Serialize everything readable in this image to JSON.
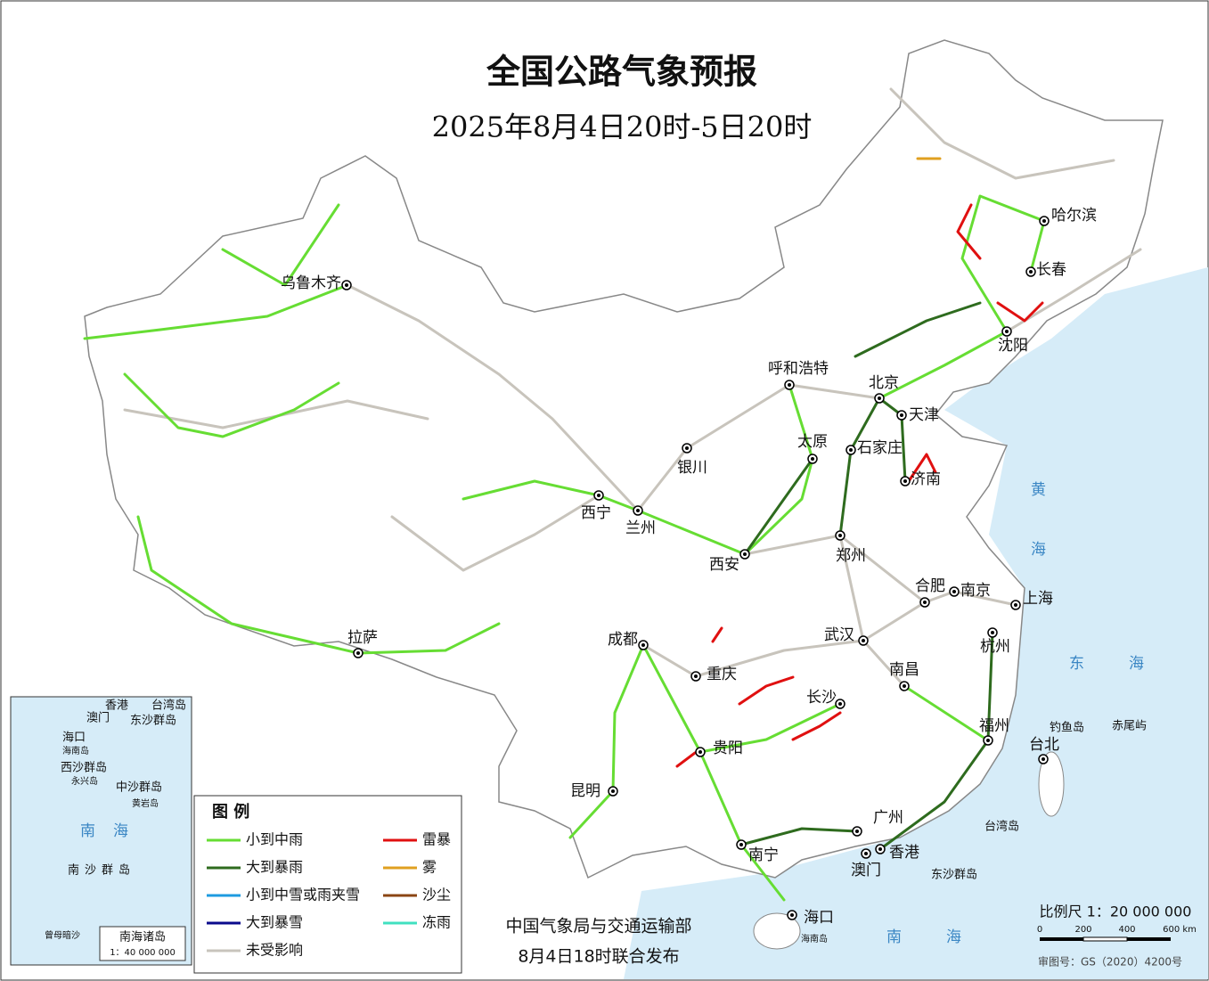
{
  "header": {
    "title": "全国公路气象预报",
    "subtitle": "2025年8月4日20时-5日20时"
  },
  "cities": [
    {
      "label": "乌鲁木齐"
    },
    {
      "label": "哈尔滨"
    },
    {
      "label": "长春"
    },
    {
      "label": "沈阳"
    },
    {
      "label": "呼和浩特"
    },
    {
      "label": "北京"
    },
    {
      "label": "天津"
    },
    {
      "label": "太原"
    },
    {
      "label": "石家庄"
    },
    {
      "label": "济南"
    },
    {
      "label": "银川"
    },
    {
      "label": "西宁"
    },
    {
      "label": "兰州"
    },
    {
      "label": "西安"
    },
    {
      "label": "郑州"
    },
    {
      "label": "合肥"
    },
    {
      "label": "南京"
    },
    {
      "label": "上海"
    },
    {
      "label": "拉萨"
    },
    {
      "label": "成都"
    },
    {
      "label": "武汉"
    },
    {
      "label": "杭州"
    },
    {
      "label": "重庆"
    },
    {
      "label": "南昌"
    },
    {
      "label": "长沙"
    },
    {
      "label": "福州"
    },
    {
      "label": "台北"
    },
    {
      "label": "贵阳"
    },
    {
      "label": "昆明"
    },
    {
      "label": "南宁"
    },
    {
      "label": "广州"
    },
    {
      "label": "香港"
    },
    {
      "label": "澳门"
    },
    {
      "label": "海口"
    }
  ],
  "places": [
    {
      "label": "钓鱼岛"
    },
    {
      "label": "赤尾屿"
    },
    {
      "label": "台湾岛"
    },
    {
      "label": "东沙群岛"
    },
    {
      "label": "海南岛"
    },
    {
      "label": "黄海"
    },
    {
      "label": "东海"
    },
    {
      "label": "南海"
    }
  ],
  "inset": {
    "title": "南海诸岛",
    "scale": "1：40 000 000",
    "labels": [
      {
        "label": "香港"
      },
      {
        "label": "澳门"
      },
      {
        "label": "台湾岛"
      },
      {
        "label": "东沙群岛"
      },
      {
        "label": "海口"
      },
      {
        "label": "海南岛"
      },
      {
        "label": "西沙群岛"
      },
      {
        "label": "永兴岛"
      },
      {
        "label": "中沙群岛"
      },
      {
        "label": "黄岩岛"
      },
      {
        "label": "南海"
      },
      {
        "label": "南沙群岛"
      },
      {
        "label": "曾母暗沙"
      }
    ]
  },
  "legend": {
    "title": "图 例",
    "items": [
      {
        "label": "小到中雨",
        "color": "#66dd33"
      },
      {
        "label": "大到暴雨",
        "color": "#2e6b1e"
      },
      {
        "label": "小到中雪或雨夹雪",
        "color": "#1e9be0"
      },
      {
        "label": "大到暴雪",
        "color": "#0a0a8c"
      },
      {
        "label": "未受影响",
        "color": "#c8c4bc"
      },
      {
        "label": "雷暴",
        "color": "#e01010"
      },
      {
        "label": "雾",
        "color": "#e0a020"
      },
      {
        "label": "沙尘",
        "color": "#8b4513"
      },
      {
        "label": "冻雨",
        "color": "#40e0c0"
      }
    ]
  },
  "footer": {
    "publisher": "中国气象局与交通运输部",
    "issued": "8月4日18时联合发布"
  },
  "scale": {
    "label": "比例尺 1：20 000 000",
    "ticks": [
      "0",
      "200",
      "400",
      "600 km"
    ]
  },
  "approval": "审图号：GS（2020）4200号"
}
